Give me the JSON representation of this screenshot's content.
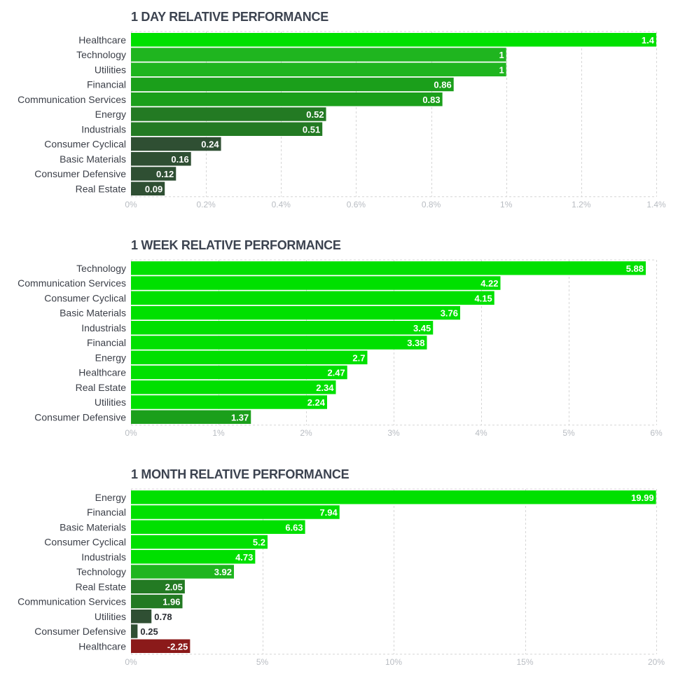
{
  "chart_data": [
    {
      "type": "bar",
      "orientation": "horizontal",
      "title": "1 DAY RELATIVE PERFORMANCE",
      "categories": [
        "Healthcare",
        "Technology",
        "Utilities",
        "Financial",
        "Communication Services",
        "Energy",
        "Industrials",
        "Consumer Cyclical",
        "Basic Materials",
        "Consumer Defensive",
        "Real Estate"
      ],
      "values": [
        1.4,
        1,
        1,
        0.86,
        0.83,
        0.52,
        0.51,
        0.24,
        0.16,
        0.12,
        0.09
      ],
      "value_labels": [
        "1.4",
        "1",
        "1",
        "0.86",
        "0.83",
        "0.52",
        "0.51",
        "0.24",
        "0.16",
        "0.12",
        "0.09"
      ],
      "colors": [
        "#00e000",
        "#1fb51f",
        "#1fb51f",
        "#1b9f1b",
        "#1b9f1b",
        "#237a23",
        "#237a23",
        "#2f4f33",
        "#2f4f33",
        "#2f4f33",
        "#2f4f33"
      ],
      "xlim": [
        0,
        1.4
      ],
      "xticks": [
        0,
        0.2,
        0.4,
        0.6,
        0.8,
        1.0,
        1.2,
        1.4
      ],
      "xtick_labels": [
        "0%",
        "0.2%",
        "0.4%",
        "0.6%",
        "0.8%",
        "1%",
        "1.2%",
        "1.4%"
      ],
      "xlabel": "",
      "ylabel": "",
      "grid": true
    },
    {
      "type": "bar",
      "orientation": "horizontal",
      "title": "1 WEEK RELATIVE PERFORMANCE",
      "categories": [
        "Technology",
        "Communication Services",
        "Consumer Cyclical",
        "Basic Materials",
        "Industrials",
        "Financial",
        "Energy",
        "Healthcare",
        "Real Estate",
        "Utilities",
        "Consumer Defensive"
      ],
      "values": [
        5.88,
        4.22,
        4.15,
        3.76,
        3.45,
        3.38,
        2.7,
        2.47,
        2.34,
        2.24,
        1.37
      ],
      "value_labels": [
        "5.88",
        "4.22",
        "4.15",
        "3.76",
        "3.45",
        "3.38",
        "2.7",
        "2.47",
        "2.34",
        "2.24",
        "1.37"
      ],
      "colors": [
        "#00e000",
        "#00e000",
        "#00e000",
        "#00e000",
        "#00e000",
        "#00e000",
        "#00e000",
        "#00e000",
        "#00e000",
        "#00e000",
        "#1b9f1b"
      ],
      "xlim": [
        0,
        6
      ],
      "xticks": [
        0,
        1,
        2,
        3,
        4,
        5,
        6
      ],
      "xtick_labels": [
        "0%",
        "1%",
        "2%",
        "3%",
        "4%",
        "5%",
        "6%"
      ],
      "xlabel": "",
      "ylabel": "",
      "grid": true
    },
    {
      "type": "bar",
      "orientation": "horizontal",
      "title": "1 MONTH RELATIVE PERFORMANCE",
      "categories": [
        "Energy",
        "Financial",
        "Basic Materials",
        "Consumer Cyclical",
        "Industrials",
        "Technology",
        "Real Estate",
        "Communication Services",
        "Utilities",
        "Consumer Defensive",
        "Healthcare"
      ],
      "values": [
        19.99,
        7.94,
        6.63,
        5.2,
        4.73,
        3.92,
        2.05,
        1.96,
        0.78,
        0.25,
        -2.25
      ],
      "value_labels": [
        "19.99",
        "7.94",
        "6.63",
        "5.2",
        "4.73",
        "3.92",
        "2.05",
        "1.96",
        "0.78",
        "0.25",
        "-2.25"
      ],
      "colors": [
        "#00e000",
        "#00e000",
        "#00e000",
        "#00e000",
        "#00e000",
        "#1fb51f",
        "#237a23",
        "#237a23",
        "#2f4f33",
        "#2f4f33",
        "#8b1a1a"
      ],
      "xlim": [
        0,
        20
      ],
      "xticks": [
        0,
        5,
        10,
        15,
        20
      ],
      "xtick_labels": [
        "0%",
        "5%",
        "10%",
        "15%",
        "20%"
      ],
      "xlabel": "",
      "ylabel": "",
      "grid": true
    }
  ]
}
